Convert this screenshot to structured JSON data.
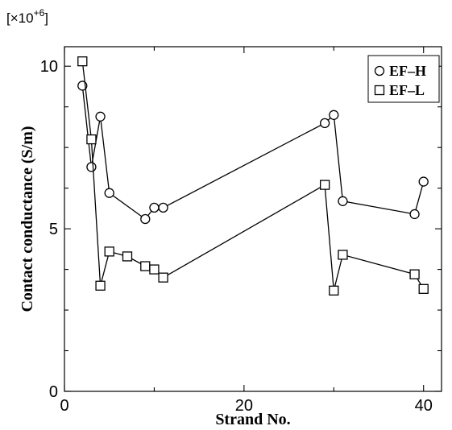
{
  "chart_data": {
    "type": "line",
    "scale_label": "[×10",
    "scale_exponent": "+6",
    "scale_suffix": "]",
    "xlabel": "Strand No.",
    "ylabel": "Contact conductance (S/m)",
    "xlim": [
      0,
      42
    ],
    "ylim": [
      0,
      10.6
    ],
    "x_major_ticks": [
      0,
      20,
      40
    ],
    "x_minor_ticks": [
      10,
      30
    ],
    "y_major_ticks": [
      0,
      5,
      10
    ],
    "y_minor_ticks": [
      1.25,
      2.5,
      3.75,
      6.25,
      7.5,
      8.75
    ],
    "x_tick_labels": [
      "0",
      "20",
      "40"
    ],
    "y_tick_labels": [
      "0",
      "5",
      "10"
    ],
    "legend_position": "top-right",
    "series": [
      {
        "name": "EF–H",
        "marker": "circle",
        "x": [
          2,
          3,
          4,
          5,
          9,
          10,
          11,
          29,
          30,
          31,
          39,
          40
        ],
        "y": [
          9.4,
          6.9,
          8.45,
          6.1,
          5.3,
          5.65,
          5.65,
          8.25,
          8.5,
          5.85,
          5.45,
          6.45
        ]
      },
      {
        "name": "EF–L",
        "marker": "square",
        "x": [
          2,
          3,
          4,
          5,
          7,
          9,
          10,
          11,
          29,
          30,
          31,
          39,
          40
        ],
        "y": [
          10.15,
          7.75,
          3.25,
          4.3,
          4.15,
          3.85,
          3.75,
          3.5,
          6.35,
          3.1,
          4.2,
          3.6,
          3.15
        ]
      }
    ]
  }
}
